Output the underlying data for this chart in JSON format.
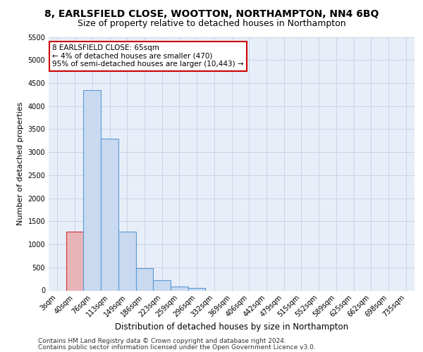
{
  "title1": "8, EARLSFIELD CLOSE, WOOTTON, NORTHAMPTON, NN4 6BQ",
  "title2": "Size of property relative to detached houses in Northampton",
  "xlabel": "Distribution of detached houses by size in Northampton",
  "ylabel": "Number of detached properties",
  "bar_labels": [
    "3sqm",
    "40sqm",
    "76sqm",
    "113sqm",
    "149sqm",
    "186sqm",
    "223sqm",
    "259sqm",
    "296sqm",
    "332sqm",
    "369sqm",
    "406sqm",
    "442sqm",
    "479sqm",
    "515sqm",
    "552sqm",
    "589sqm",
    "625sqm",
    "662sqm",
    "698sqm",
    "735sqm"
  ],
  "bar_values": [
    0,
    1270,
    4350,
    3300,
    1270,
    480,
    215,
    90,
    55,
    0,
    0,
    0,
    0,
    0,
    0,
    0,
    0,
    0,
    0,
    0,
    0
  ],
  "bar_color": "#c9d9f0",
  "bar_edge_color": "#5b9bd5",
  "highlight_bar_index": 1,
  "highlight_bar_color": "#e8b4b8",
  "highlight_bar_edge_color": "#cc3333",
  "grid_color": "#c8d4e8",
  "background_color": "#e8eef8",
  "annotation_text": "8 EARLSFIELD CLOSE: 65sqm\n← 4% of detached houses are smaller (470)\n95% of semi-detached houses are larger (10,443) →",
  "annotation_box_color": "#ffffff",
  "annotation_border_color": "#cc0000",
  "ylim": [
    0,
    5500
  ],
  "yticks": [
    0,
    500,
    1000,
    1500,
    2000,
    2500,
    3000,
    3500,
    4000,
    4500,
    5000,
    5500
  ],
  "footer1": "Contains HM Land Registry data © Crown copyright and database right 2024.",
  "footer2": "Contains public sector information licensed under the Open Government Licence v3.0.",
  "title1_fontsize": 10,
  "title2_fontsize": 9,
  "xlabel_fontsize": 8.5,
  "ylabel_fontsize": 8,
  "tick_fontsize": 7,
  "annotation_fontsize": 7.5,
  "footer_fontsize": 6.5
}
